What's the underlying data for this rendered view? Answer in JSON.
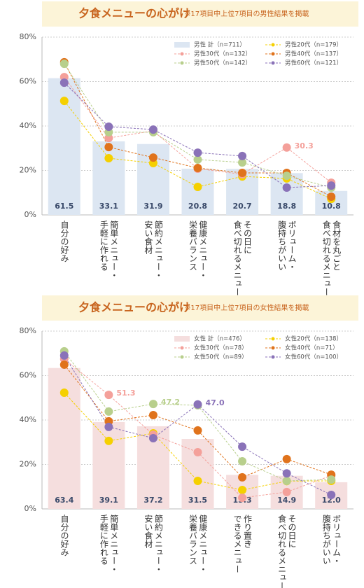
{
  "chart_data": [
    {
      "type": "combo",
      "title": "夕食メニューの心がけ",
      "subtitle": "※17項目中上位7項目の男性結果を掲載",
      "categories": [
        "自分の好み",
        "簡単メニュー・\n手軽に作れる",
        "節約メニュー・\n安い食材",
        "健康メニュー・\n栄養バランス",
        "その日に\n食べ切れるメニュー",
        "ボリューム・\n腹持ちがいい",
        "食材を丸ごと\n食べ切れるメニュー"
      ],
      "series": [
        {
          "name": "男性 計（n=711）",
          "mark": "bar",
          "color": "#dce6f2",
          "values": [
            61.5,
            33.1,
            31.9,
            20.8,
            20.7,
            18.8,
            10.8
          ],
          "value_labels": [
            "61.5",
            "33.1",
            "31.9",
            "20.8",
            "20.7",
            "18.8",
            "10.8"
          ]
        },
        {
          "name": "男性20代（n=179）",
          "mark": "line",
          "color": "#f5d000",
          "values": [
            51.3,
            25.5,
            23.3,
            12.6,
            17.3,
            16.4,
            7.2
          ]
        },
        {
          "name": "男性30代（n=132）",
          "mark": "line",
          "color": "#f4a09a",
          "values": [
            62,
            34.6,
            37.8,
            20.8,
            18.3,
            30.3,
            14.5
          ],
          "value_labels": [
            null,
            null,
            null,
            null,
            null,
            "30.3",
            null
          ]
        },
        {
          "name": "男性40代（n=137）",
          "mark": "line",
          "color": "#e0731c",
          "values": [
            68.7,
            30.5,
            25.8,
            21.1,
            18.9,
            18.9,
            8.2
          ]
        },
        {
          "name": "男性50代（n=142）",
          "mark": "line",
          "color": "#b8cf8c",
          "values": [
            68,
            37.2,
            37.2,
            24.9,
            23.6,
            17.6,
            12.3
          ]
        },
        {
          "name": "男性60代（n=121）",
          "mark": "line",
          "color": "#8a72b8",
          "values": [
            59.5,
            39.7,
            38.4,
            28,
            26.5,
            12.3,
            13.2
          ]
        }
      ],
      "ylim": [
        0,
        80
      ],
      "yticks": [
        {
          "value": 0,
          "label": "0%"
        },
        {
          "value": 20,
          "label": "20%"
        },
        {
          "value": 40,
          "label": "40%"
        },
        {
          "value": 60,
          "label": "60%"
        },
        {
          "value": 80,
          "label": "80%"
        }
      ],
      "grid": true,
      "legend": "top-right"
    },
    {
      "type": "combo",
      "title": "夕食メニューの心がけ",
      "subtitle": "※17項目中上位7項目の女性結果を掲載",
      "categories": [
        "自分の好み",
        "簡単メニュー・\n手軽に作れる",
        "節約メニュー・\n安い食材",
        "健康メニュー・\n栄養バランス",
        "作り置き\nできるメニュー",
        "その日に\n食べ切れるメニュー",
        "ボリューム・\n腹持ちがいい"
      ],
      "series": [
        {
          "name": "女性 計（n=476）",
          "mark": "bar",
          "color": "#f5dede",
          "values": [
            63.4,
            39.1,
            37.2,
            31.5,
            15.3,
            14.9,
            12.0
          ],
          "value_labels": [
            "63.4",
            "39.1",
            "37.2",
            "31.5",
            "15.3",
            "14.9",
            "12.0"
          ]
        },
        {
          "name": "女性20代（n=138）",
          "mark": "line",
          "color": "#f5d000",
          "values": [
            52.3,
            30.6,
            34,
            12.6,
            8.5,
            12.5,
            12.6
          ]
        },
        {
          "name": "女性30代（n=78）",
          "mark": "line",
          "color": "#f4a09a",
          "values": [
            67.4,
            51.3,
            33.4,
            25.5,
            5,
            7.6,
            15
          ],
          "value_labels": [
            null,
            "51.3",
            null,
            null,
            null,
            null,
            null
          ]
        },
        {
          "name": "女性40代（n=71）",
          "mark": "line",
          "color": "#e0731c",
          "values": [
            64.9,
            39.4,
            42.2,
            35.3,
            14.2,
            22.4,
            15.4
          ]
        },
        {
          "name": "女性50代（n=89）",
          "mark": "line",
          "color": "#b8cf8c",
          "values": [
            70.9,
            43.8,
            47.2,
            46.6,
            21.4,
            12.6,
            13.2
          ],
          "value_labels": [
            null,
            null,
            "47.2",
            null,
            null,
            null,
            null
          ]
        },
        {
          "name": "女性60代（n=100）",
          "mark": "line",
          "color": "#8a72b8",
          "values": [
            69,
            36.9,
            31.8,
            47,
            28,
            16,
            6.3
          ],
          "value_labels": [
            null,
            null,
            null,
            "47.0",
            null,
            null,
            null
          ]
        }
      ],
      "ylim": [
        0,
        80
      ],
      "yticks": [
        {
          "value": 0,
          "label": "0%"
        },
        {
          "value": 20,
          "label": "20%"
        },
        {
          "value": 40,
          "label": "40%"
        },
        {
          "value": 60,
          "label": "60%"
        },
        {
          "value": 80,
          "label": "80%"
        }
      ],
      "grid": true,
      "legend": "top-right"
    }
  ]
}
